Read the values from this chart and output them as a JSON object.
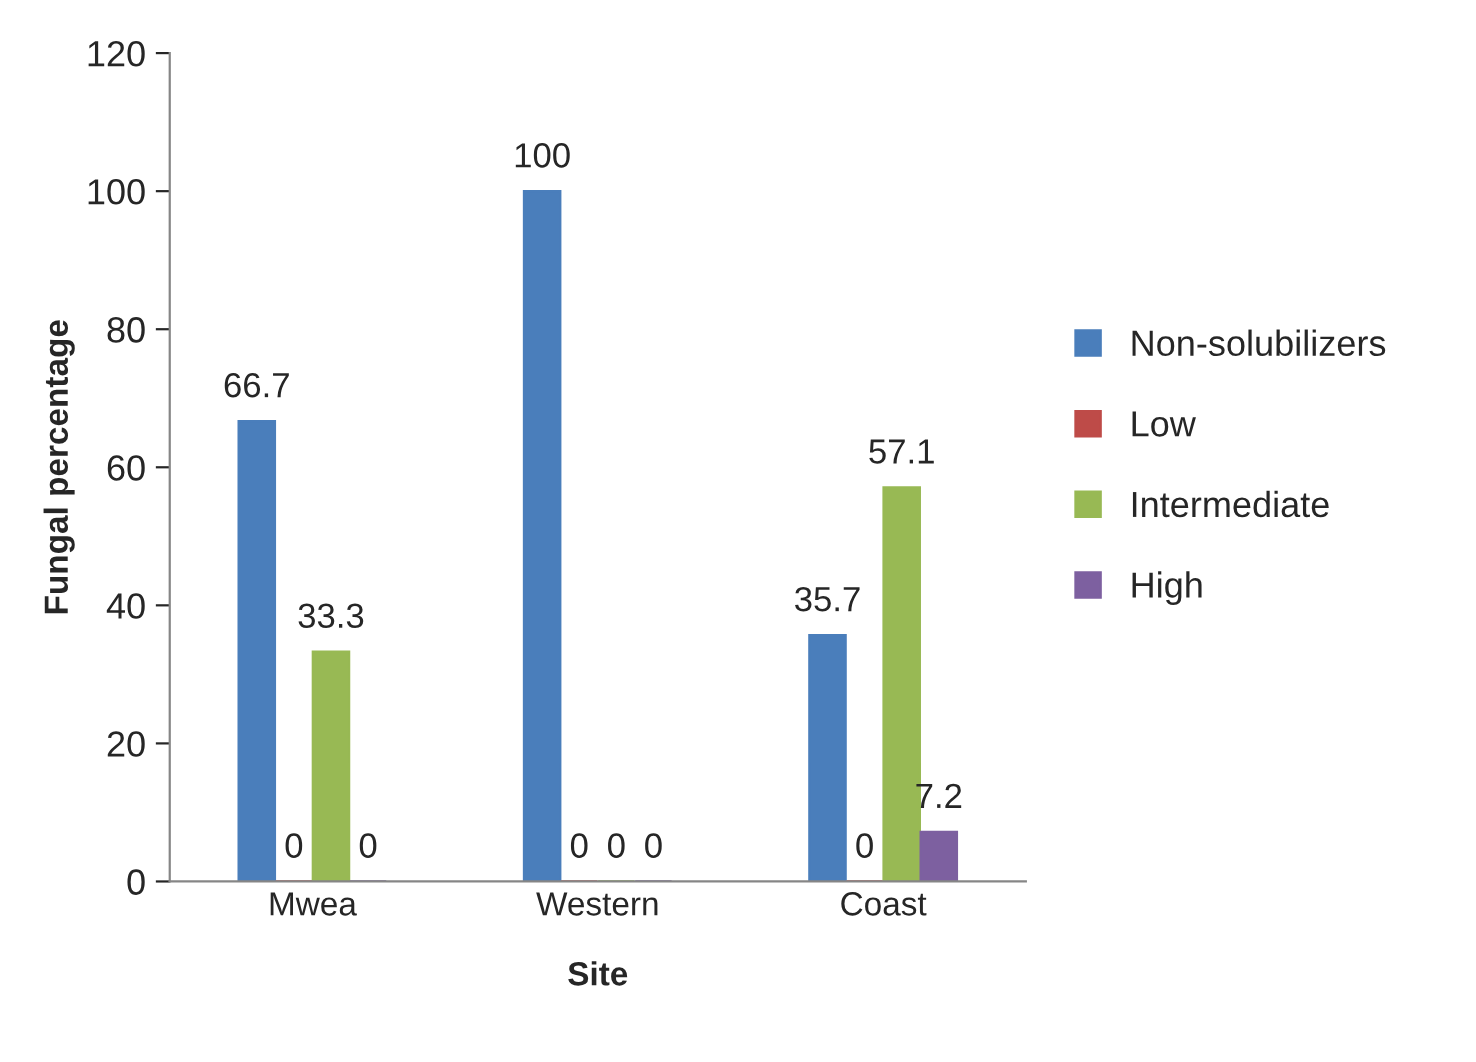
{
  "chart_data": {
    "type": "bar",
    "xlabel": "Site",
    "ylabel": "Fungal percentage",
    "categories": [
      "Mwea",
      "Western",
      "Coast"
    ],
    "series": [
      {
        "name": "Non-solubilizers",
        "color": "#4a7ebb",
        "values": [
          66.7,
          100,
          35.7
        ]
      },
      {
        "name": "Low",
        "color": "#be4b48",
        "values": [
          0,
          0,
          0
        ]
      },
      {
        "name": "Intermediate",
        "color": "#98b954",
        "values": [
          33.3,
          0,
          57.1
        ]
      },
      {
        "name": "High",
        "color": "#7d60a0",
        "values": [
          0,
          0,
          7.2
        ]
      }
    ],
    "ylim": [
      0,
      120
    ],
    "yticks": [
      0,
      20,
      40,
      60,
      80,
      100,
      120
    ],
    "data_labels": true,
    "grid": false,
    "legend": "right"
  }
}
